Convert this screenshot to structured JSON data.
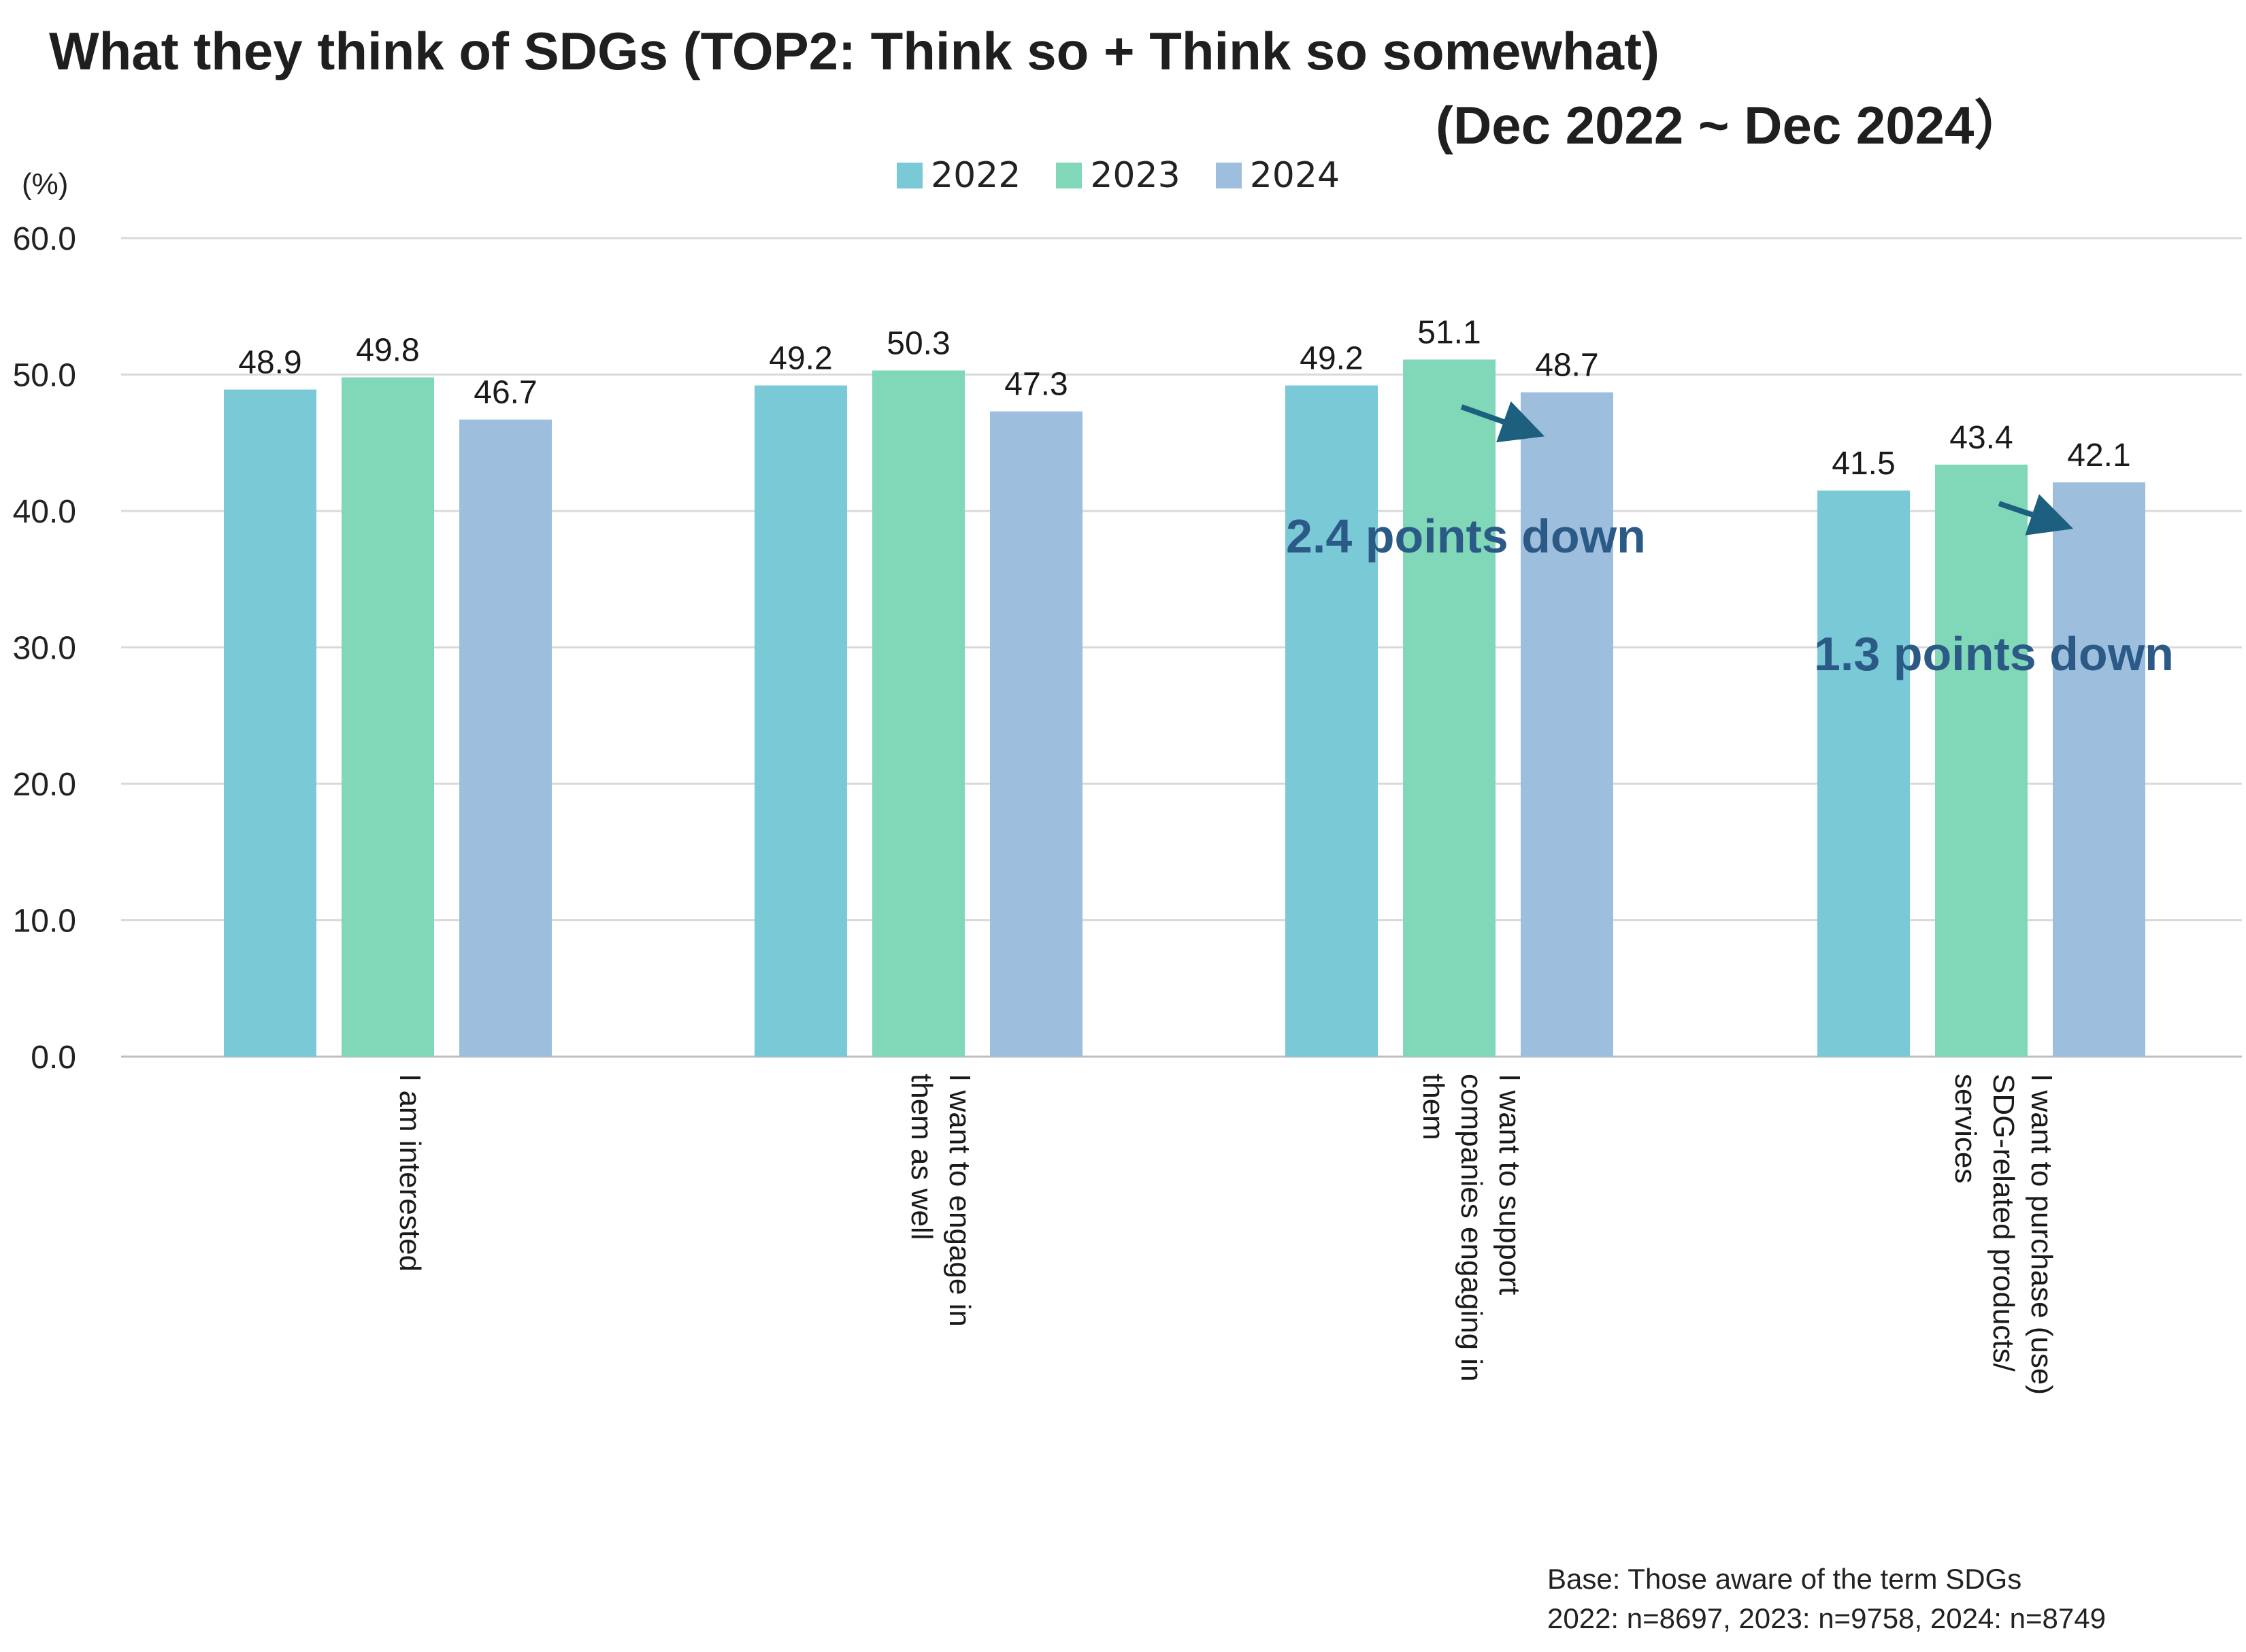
{
  "title_line1": "What they think of SDGs (TOP2: Think so + Think so somewhat)",
  "title_line2": "(Dec 2022 ~ Dec 2024）",
  "unit_label": "(%)",
  "footnote": {
    "line1": "Base: Those aware of the term SDGs",
    "line2": "2022: n=8697, 2023: n=9758, 2024: n=8749"
  },
  "colors": {
    "series_2022": "#79c9d7",
    "series_2023": "#80d8b8",
    "series_2024": "#9ebedd",
    "annotation": "#2c5a86",
    "arrow": "#1d5f7e",
    "grid": "#d9d9d9"
  },
  "chart_data": {
    "type": "bar",
    "title": "What they think of SDGs (TOP2: Think so + Think so somewhat) (Dec 2022 ~ Dec 2024）",
    "ylabel": "(%)",
    "ylim": [
      0,
      60
    ],
    "yticks": [
      "0.0",
      "10.0",
      "20.0",
      "30.0",
      "40.0",
      "50.0",
      "60.0"
    ],
    "grid": true,
    "legend_position": "top-center",
    "categories": [
      [
        "I am interested"
      ],
      [
        "I want to engage in",
        "them as well"
      ],
      [
        "I want to support",
        "companies engaging in",
        "them"
      ],
      [
        "I want to purchase (use)",
        "SDG-related products/",
        "services"
      ]
    ],
    "series": [
      {
        "name": "2022",
        "values": [
          48.9,
          49.2,
          49.2,
          41.5
        ],
        "labels": [
          "48.9",
          "49.2",
          "49.2",
          "41.5"
        ]
      },
      {
        "name": "2023",
        "values": [
          49.8,
          50.3,
          51.1,
          43.4
        ],
        "labels": [
          "49.8",
          "50.3",
          "51.1",
          "43.4"
        ]
      },
      {
        "name": "2024",
        "values": [
          46.7,
          47.3,
          48.7,
          42.1
        ],
        "labels": [
          "46.7",
          "47.3",
          "48.7",
          "42.1"
        ]
      }
    ],
    "annotations": [
      {
        "text": "2.4 points down",
        "category_index": 2
      },
      {
        "text": "1.3 points down",
        "category_index": 3
      }
    ]
  }
}
